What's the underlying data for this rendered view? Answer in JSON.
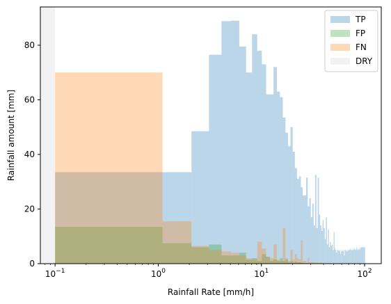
{
  "chart_data": {
    "type": "bar",
    "xlabel": "Rainfall Rate [mm/h]",
    "ylabel": "Rainfall amount [mm]",
    "xscale": "log",
    "xlim": [
      0.072,
      145
    ],
    "ylim": [
      0,
      94
    ],
    "grid": false,
    "legend_position": "top-right",
    "x_ticks": [
      {
        "value": 0.1,
        "base": "10",
        "exp": "−1"
      },
      {
        "value": 1,
        "base": "10",
        "exp": "0"
      },
      {
        "value": 10,
        "base": "10",
        "exp": "1"
      },
      {
        "value": 100,
        "base": "10",
        "exp": "2"
      }
    ],
    "y_ticks": [
      {
        "value": 0,
        "label": "0"
      },
      {
        "value": 20,
        "label": "20"
      },
      {
        "value": 40,
        "label": "40"
      },
      {
        "value": 60,
        "label": "60"
      },
      {
        "value": 80,
        "label": "80"
      }
    ],
    "dry_region": [
      0.072,
      0.1
    ],
    "series": [
      {
        "name": "TP",
        "color": "#1f77b4",
        "opacity": 0.3,
        "bins": [
          [
            0.1,
            1.1,
            33.5
          ],
          [
            1.1,
            2.1,
            33.5
          ],
          [
            2.1,
            3.1,
            48.5
          ],
          [
            3.1,
            4.1,
            76.5
          ],
          [
            4.1,
            5.1,
            88.8
          ],
          [
            5.1,
            6.1,
            89.0
          ],
          [
            6.1,
            7.1,
            79.5
          ],
          [
            7.1,
            8.1,
            70.0
          ],
          [
            8.1,
            9.1,
            84.0
          ],
          [
            9.1,
            10.1,
            78.0
          ],
          [
            10.1,
            11.1,
            73.0
          ],
          [
            11.1,
            12.1,
            62.0
          ],
          [
            12.1,
            13.1,
            62.0
          ],
          [
            13.1,
            14.1,
            72.0
          ],
          [
            14.1,
            15.1,
            63.0
          ],
          [
            15.1,
            16.1,
            61.0
          ],
          [
            16.1,
            17.1,
            53.5
          ],
          [
            17.1,
            18.1,
            48.0
          ],
          [
            18.1,
            19.1,
            43.0
          ],
          [
            19.1,
            20.1,
            50.0
          ],
          [
            20.1,
            21.1,
            41.0
          ],
          [
            21.1,
            22.1,
            35.0
          ],
          [
            22.1,
            23.1,
            31.0
          ],
          [
            23.1,
            24.1,
            32.0
          ],
          [
            24.1,
            25.1,
            28.0
          ],
          [
            25.1,
            26.1,
            25.0
          ],
          [
            26.1,
            27.1,
            25.0
          ],
          [
            27.1,
            28.1,
            31.5
          ],
          [
            28.1,
            29.1,
            21.0
          ],
          [
            29.1,
            30.1,
            24.0
          ],
          [
            30.1,
            31.1,
            17.0
          ],
          [
            31.1,
            32.1,
            22.0
          ],
          [
            32.1,
            33.1,
            14.0
          ],
          [
            33.1,
            34.1,
            32.5
          ],
          [
            34.1,
            35.1,
            13.0
          ],
          [
            35.1,
            36.1,
            31.5
          ],
          [
            36.1,
            37.1,
            18.0
          ],
          [
            37.1,
            38.1,
            14.0
          ],
          [
            38.1,
            39.1,
            12.0
          ],
          [
            39.1,
            40.1,
            16.0
          ],
          [
            40.1,
            41.1,
            13.0
          ],
          [
            41.1,
            42.1,
            9.0
          ],
          [
            42.1,
            43.1,
            17.0
          ],
          [
            43.1,
            44.1,
            7.0
          ],
          [
            44.1,
            45.1,
            12.5
          ],
          [
            45.1,
            46.1,
            6.0
          ],
          [
            46.1,
            47.1,
            8.0
          ],
          [
            47.1,
            48.1,
            6.5
          ],
          [
            48.1,
            49.1,
            7.0
          ],
          [
            49.1,
            50.1,
            5.0
          ],
          [
            50.1,
            51.1,
            11.5
          ],
          [
            51.1,
            52.1,
            5.5
          ],
          [
            52.1,
            53.1,
            5.0
          ],
          [
            53.1,
            54.1,
            4.0
          ],
          [
            54.1,
            55.1,
            5.0
          ],
          [
            55.1,
            56.1,
            5.0
          ],
          [
            56.1,
            57.1,
            4.5
          ],
          [
            57.1,
            58.1,
            5.0
          ],
          [
            58.1,
            59.1,
            3.5
          ],
          [
            59.1,
            60.1,
            4.5
          ],
          [
            60.1,
            61.1,
            5.0
          ],
          [
            61.1,
            62.1,
            4.5
          ],
          [
            62.1,
            63.1,
            5.0
          ],
          [
            63.1,
            64.1,
            3.0
          ],
          [
            64.1,
            65.1,
            5.0
          ],
          [
            65.1,
            66.1,
            5.0
          ],
          [
            66.1,
            67.1,
            4.5
          ],
          [
            67.1,
            68.1,
            5.0
          ],
          [
            68.1,
            69.1,
            4.5
          ],
          [
            69.1,
            70.1,
            5.0
          ],
          [
            70.1,
            71.1,
            5.0
          ],
          [
            71.1,
            72.1,
            5.0
          ],
          [
            72.1,
            73.1,
            5.5
          ],
          [
            73.1,
            74.1,
            5.0
          ],
          [
            74.1,
            75.1,
            5.0
          ],
          [
            75.1,
            76.1,
            5.0
          ],
          [
            76.1,
            77.1,
            5.0
          ],
          [
            77.1,
            78.1,
            5.5
          ],
          [
            78.1,
            79.1,
            5.0
          ],
          [
            79.1,
            80.1,
            5.5
          ],
          [
            80.1,
            81.1,
            5.0
          ],
          [
            81.1,
            82.1,
            5.5
          ],
          [
            82.1,
            83.1,
            5.0
          ],
          [
            83.1,
            84.1,
            6.0
          ],
          [
            84.1,
            85.1,
            5.0
          ],
          [
            85.1,
            86.1,
            5.5
          ],
          [
            86.1,
            87.1,
            5.0
          ],
          [
            87.1,
            88.1,
            5.5
          ],
          [
            88.1,
            89.1,
            5.0
          ],
          [
            89.1,
            90.1,
            5.5
          ],
          [
            90.1,
            91.1,
            6.0
          ],
          [
            91.1,
            92.1,
            5.5
          ],
          [
            92.1,
            93.1,
            6.0
          ],
          [
            93.1,
            94.1,
            6.0
          ],
          [
            94.1,
            95.1,
            6.0
          ],
          [
            95.1,
            96.1,
            6.0
          ],
          [
            96.1,
            97.1,
            6.0
          ],
          [
            97.1,
            98.1,
            6.0
          ],
          [
            98.1,
            99.1,
            6.0
          ],
          [
            99.1,
            100.1,
            6.0
          ],
          [
            100.1,
            101.1,
            6.0
          ]
        ]
      },
      {
        "name": "FP",
        "color": "#2ca02c",
        "opacity": 0.3,
        "bins": [
          [
            0.1,
            1.1,
            13.5
          ],
          [
            1.1,
            2.1,
            7.5
          ],
          [
            2.1,
            3.1,
            6.0
          ],
          [
            3.1,
            4.1,
            7.0
          ],
          [
            4.1,
            5.1,
            3.0
          ],
          [
            5.1,
            6.1,
            3.0
          ],
          [
            6.1,
            7.1,
            4.0
          ],
          [
            7.1,
            8.1,
            1.5
          ],
          [
            8.1,
            9.1,
            2.0
          ],
          [
            9.1,
            10.1,
            1.0
          ],
          [
            10.1,
            11.1,
            3.5
          ],
          [
            11.1,
            12.1,
            2.5
          ],
          [
            12.1,
            13.1,
            1.0
          ],
          [
            13.1,
            14.1,
            1.5
          ],
          [
            14.1,
            15.1,
            1.0
          ],
          [
            15.1,
            16.1,
            2.0
          ],
          [
            16.1,
            17.1,
            1.0
          ],
          [
            17.1,
            18.1,
            1.5
          ],
          [
            18.1,
            19.1,
            0.5
          ],
          [
            19.1,
            20.1,
            1.0
          ],
          [
            20.1,
            21.1,
            0.5
          ],
          [
            21.1,
            22.1,
            0.8
          ],
          [
            22.1,
            23.1,
            0.5
          ],
          [
            23.1,
            24.1,
            0.5
          ],
          [
            24.1,
            25.1,
            0.3
          ],
          [
            25.1,
            26.1,
            0.3
          ]
        ]
      },
      {
        "name": "FN",
        "color": "#ff7f0e",
        "opacity": 0.3,
        "bins": [
          [
            0.1,
            1.1,
            70.0
          ],
          [
            1.1,
            2.1,
            15.5
          ],
          [
            2.1,
            3.1,
            6.5
          ],
          [
            3.1,
            4.1,
            5.0
          ],
          [
            4.1,
            5.1,
            4.5
          ],
          [
            5.1,
            6.1,
            4.0
          ],
          [
            6.1,
            7.1,
            3.0
          ],
          [
            7.1,
            8.1,
            2.0
          ],
          [
            8.1,
            9.1,
            1.5
          ],
          [
            9.1,
            10.1,
            8.0
          ],
          [
            10.1,
            11.1,
            5.5
          ],
          [
            11.1,
            12.1,
            2.5
          ],
          [
            12.1,
            13.1,
            2.0
          ],
          [
            13.1,
            14.1,
            7.0
          ],
          [
            14.1,
            15.1,
            1.5
          ],
          [
            15.1,
            16.1,
            1.0
          ],
          [
            16.1,
            17.1,
            13.0
          ],
          [
            17.1,
            18.1,
            2.0
          ],
          [
            18.1,
            19.1,
            1.0
          ],
          [
            19.1,
            20.1,
            5.0
          ],
          [
            20.1,
            21.1,
            1.5
          ],
          [
            21.1,
            22.1,
            3.5
          ],
          [
            22.1,
            23.1,
            2.0
          ],
          [
            23.1,
            24.1,
            1.5
          ],
          [
            24.1,
            25.1,
            8.5
          ],
          [
            25.1,
            26.1,
            1.0
          ],
          [
            26.1,
            27.1,
            1.0
          ],
          [
            27.1,
            28.1,
            0.5
          ],
          [
            28.1,
            29.1,
            2.0
          ],
          [
            29.1,
            30.1,
            0.5
          ],
          [
            30.1,
            31.1,
            0.5
          ],
          [
            31.1,
            32.1,
            0.5
          ],
          [
            32.1,
            33.1,
            0.5
          ],
          [
            33.1,
            34.1,
            0.3
          ],
          [
            34.1,
            35.1,
            0.5
          ],
          [
            35.1,
            36.1,
            0.3
          ],
          [
            36.1,
            37.1,
            0.3
          ],
          [
            37.1,
            38.1,
            0.5
          ],
          [
            38.1,
            39.1,
            0.3
          ]
        ]
      }
    ],
    "legend": [
      {
        "label": "TP",
        "color": "#1f77b4",
        "opacity": 0.3
      },
      {
        "label": "FP",
        "color": "#2ca02c",
        "opacity": 0.3
      },
      {
        "label": "FN",
        "color": "#ff7f0e",
        "opacity": 0.3
      },
      {
        "label": "DRY",
        "color": "#bdbdbd",
        "opacity": 0.2
      }
    ]
  }
}
